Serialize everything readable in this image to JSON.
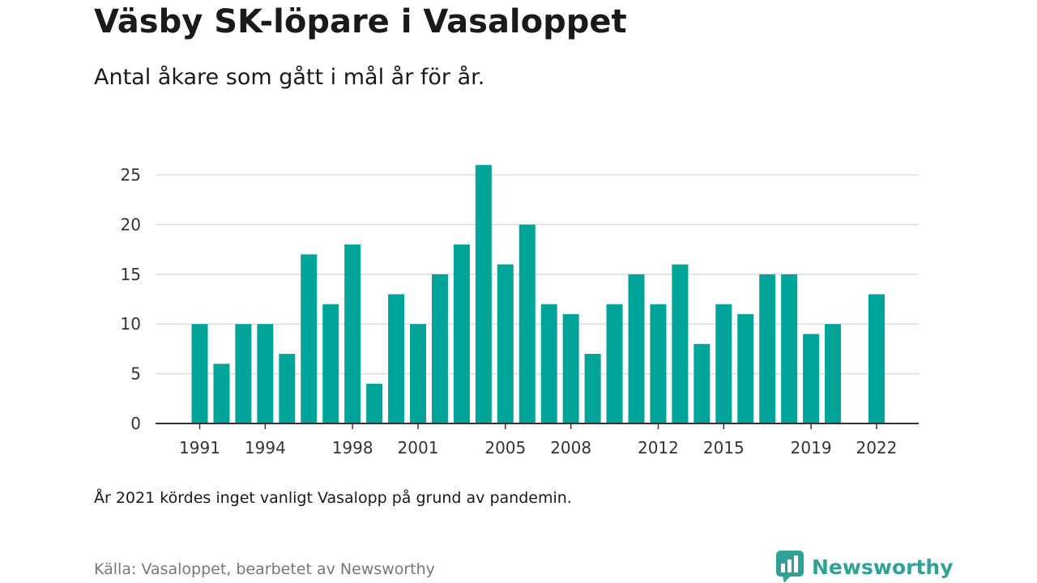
{
  "title": "Väsby SK-löpare i Vasaloppet",
  "subtitle": "Antal åkare som gått i mål år för år.",
  "note": "År 2021 kördes inget vanligt Vasalopp på grund av pandemin.",
  "source": "Källa: Vasaloppet, bearbetet av Newsworthy",
  "brand": {
    "name": "Newsworthy",
    "icon": "newsworthy-logo-icon",
    "color": "#2fa197"
  },
  "chart_data": {
    "type": "bar",
    "title": "Väsby SK-löpare i Vasaloppet",
    "subtitle": "Antal åkare som gått i mål år för år.",
    "xlabel": "",
    "ylabel": "",
    "color": "#00a499",
    "grid": true,
    "ylim": [
      0,
      27
    ],
    "yticks": [
      0,
      5,
      10,
      15,
      20,
      25
    ],
    "xticks": [
      "1991",
      "1994",
      "1998",
      "2001",
      "2005",
      "2008",
      "2012",
      "2015",
      "2019",
      "2022"
    ],
    "categories": [
      "1991",
      "1992",
      "1993",
      "1994",
      "1995",
      "1996",
      "1997",
      "1998",
      "1999",
      "2000",
      "2001",
      "2002",
      "2003",
      "2004",
      "2005",
      "2006",
      "2007",
      "2008",
      "2009",
      "2010",
      "2011",
      "2012",
      "2013",
      "2014",
      "2015",
      "2016",
      "2017",
      "2018",
      "2019",
      "2020",
      "2021",
      "2022"
    ],
    "values": [
      10,
      6,
      10,
      10,
      7,
      17,
      12,
      18,
      4,
      13,
      10,
      15,
      18,
      26,
      16,
      20,
      12,
      11,
      7,
      12,
      15,
      12,
      16,
      8,
      12,
      11,
      15,
      15,
      9,
      10,
      null,
      13
    ]
  }
}
